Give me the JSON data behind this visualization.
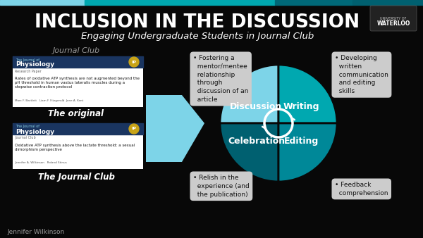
{
  "title": "INCLUSION IN THE DISCUSSION",
  "subtitle": "Engaging Undergraduate Students in Journal Club",
  "background_color": "#080808",
  "title_color": "#ffffff",
  "subtitle_color": "#ffffff",
  "title_fontsize": 19,
  "subtitle_fontsize": 9.5,
  "quadrant_colors": {
    "Discussion": "#7dd4e8",
    "Writing": "#00a8b0",
    "Celebration": "#006070",
    "Editing": "#008898"
  },
  "quadrant_label_fontsize": 9,
  "arrow_color": "#7dd4e8",
  "text_box_tl": "• Fostering a\n  mentor/mentee\n  relationship\n  through\n  discussion of an\n  article",
  "text_box_tr": "• Developing\n  written\n  communication\n  and editing\n  skills",
  "text_box_bl": "• Relish in the\n  experience (and\n  the publication)",
  "text_box_br": "• Feedback\n  comprehension",
  "textbox_bg": "#cccccc",
  "textbox_fontsize": 6.5,
  "textbox_text_color": "#111111",
  "journal_club_label": "Journal Club",
  "original_label": "The original",
  "jc_label": "The Journal Club",
  "author_label": "Jennifer Wilkinson",
  "label_color": "#999999",
  "paper1_header_color": "#1a3560",
  "paper1_title": "Rates of oxidative ATP synthesis are not augmented beyond the\npH threshold in human vastus lateralis muscles during a\nstepwise contraction protocol",
  "paper1_sub": "Research Paper",
  "paper1_authors": "Marc F. Bartlett   Liam F. Fitzgerald  Jane A. Kent",
  "paper2_title": "Oxidative ATP synthesis above the lactate threshold: a sexual\ndimorphism perspective",
  "paper2_sub": "Journal Club",
  "paper2_authors": "Jennifer A. Wilkinson   Roland Stinus",
  "paper_bg": "#ffffff",
  "top_bar_colors": [
    "#7dd4e8",
    "#00a8b0",
    "#00a8b0",
    "#006878",
    "#006070"
  ],
  "top_bar_widths": [
    120,
    130,
    140,
    110,
    100
  ],
  "waterloo_bg": "#222222"
}
